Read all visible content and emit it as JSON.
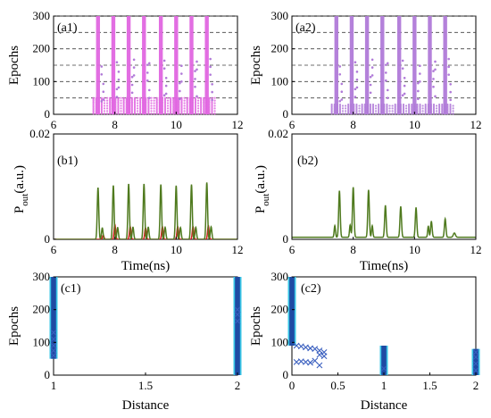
{
  "colors": {
    "magenta": "#e066e0",
    "violet": "#b07ad8",
    "olive": "#4f7a1e",
    "red": "#d42020",
    "navy": "#1f4aa3",
    "cyan": "#38c6e6",
    "cross": "#3a5fbf",
    "grid": "#404040"
  },
  "chart_data": [
    {
      "id": "a1",
      "type": "scatter",
      "label": "(a1)",
      "ylabel": "Epochs",
      "xlabel": "",
      "xlim": [
        6,
        12
      ],
      "ylim": [
        0,
        300
      ],
      "xticks": [
        "6",
        "8",
        "10",
        "12"
      ],
      "yticks": [
        "0",
        "100",
        "200",
        "300"
      ],
      "grid_lines_y": [
        50,
        100,
        150,
        200,
        250,
        300
      ],
      "grid": "dashed horizontal",
      "pulse_positions_ns": [
        7.45,
        7.95,
        8.45,
        8.95,
        9.5,
        10.0,
        10.5,
        11.0
      ],
      "fill_to_epochs": 300,
      "marker_color": "magenta",
      "band_dots_epochs_max": 50
    },
    {
      "id": "a2",
      "type": "scatter",
      "label": "(a2)",
      "ylabel": "Epochs",
      "xlabel": "",
      "xlim": [
        6,
        12
      ],
      "ylim": [
        0,
        300
      ],
      "xticks": [
        "6",
        "8",
        "10",
        "12"
      ],
      "yticks": [
        "0",
        "100",
        "200",
        "300"
      ],
      "grid_lines_y": [
        50,
        100,
        150,
        200,
        250,
        300
      ],
      "grid": "dashed horizontal",
      "pulse_positions_ns": [
        7.45,
        7.95,
        8.45,
        8.95,
        9.5,
        10.0,
        10.5,
        11.0
      ],
      "fill_to_epochs": 300,
      "marker_color": "violet",
      "band_dots_epochs_max": 30
    },
    {
      "id": "b1",
      "type": "line",
      "label": "(b1)",
      "ylabel": "P",
      "ylabel_sub": "out",
      "ylabel_unit": "(a.u.)",
      "xlabel": "Time(ns)",
      "xlim": [
        6,
        12
      ],
      "ylim": [
        0,
        0.02
      ],
      "xticks": [
        "6",
        "8",
        "10",
        "12"
      ],
      "yticks": [
        "0",
        "0.02"
      ],
      "series": [
        {
          "color": "olive",
          "pulses": [
            {
              "t": 7.45,
              "amp": 0.0098,
              "w": 0.035
            },
            {
              "t": 7.95,
              "amp": 0.0102,
              "w": 0.035
            },
            {
              "t": 8.45,
              "amp": 0.0105,
              "w": 0.035
            },
            {
              "t": 8.95,
              "amp": 0.0105,
              "w": 0.035
            },
            {
              "t": 9.5,
              "amp": 0.0104,
              "w": 0.035
            },
            {
              "t": 10.0,
              "amp": 0.0102,
              "w": 0.035
            },
            {
              "t": 10.5,
              "amp": 0.0104,
              "w": 0.035
            },
            {
              "t": 11.0,
              "amp": 0.0108,
              "w": 0.035
            }
          ],
          "echo": {
            "dt": 0.14,
            "ratio": 0.22
          }
        },
        {
          "color": "red",
          "pulses": [
            {
              "t": 7.62,
              "amp": 0.0008,
              "w": 0.035
            },
            {
              "t": 8.0,
              "amp": 0.0028,
              "w": 0.035
            },
            {
              "t": 8.5,
              "amp": 0.0024,
              "w": 0.035
            },
            {
              "t": 9.0,
              "amp": 0.0022,
              "w": 0.035
            },
            {
              "t": 9.55,
              "amp": 0.0024,
              "w": 0.035
            },
            {
              "t": 10.05,
              "amp": 0.0024,
              "w": 0.035
            },
            {
              "t": 10.55,
              "amp": 0.0024,
              "w": 0.035
            },
            {
              "t": 11.05,
              "amp": 0.0026,
              "w": 0.035
            }
          ]
        }
      ]
    },
    {
      "id": "b2",
      "type": "line",
      "label": "(b2)",
      "ylabel": "P",
      "ylabel_sub": "out",
      "ylabel_unit": "(a.u.)",
      "xlabel": "Time(ns)",
      "xlim": [
        6,
        12
      ],
      "ylim": [
        0,
        0.02
      ],
      "xticks": [
        "6",
        "8",
        "10",
        "12"
      ],
      "yticks": [
        "0",
        "0.02"
      ],
      "series": [
        {
          "color": "olive",
          "pulses": [
            {
              "t": 7.4,
              "amp": 0.0022,
              "w": 0.03
            },
            {
              "t": 7.55,
              "amp": 0.0088,
              "w": 0.035
            },
            {
              "t": 7.9,
              "amp": 0.0023,
              "w": 0.03
            },
            {
              "t": 8.0,
              "amp": 0.0095,
              "w": 0.035
            },
            {
              "t": 8.5,
              "amp": 0.009,
              "w": 0.035
            },
            {
              "t": 8.62,
              "amp": 0.0022,
              "w": 0.03
            },
            {
              "t": 9.05,
              "amp": 0.006,
              "w": 0.035
            },
            {
              "t": 9.55,
              "amp": 0.0058,
              "w": 0.035
            },
            {
              "t": 10.05,
              "amp": 0.0056,
              "w": 0.035
            },
            {
              "t": 10.45,
              "amp": 0.0021,
              "w": 0.03
            },
            {
              "t": 10.55,
              "amp": 0.003,
              "w": 0.035
            },
            {
              "t": 11.0,
              "amp": 0.0035,
              "w": 0.035
            },
            {
              "t": 11.3,
              "amp": 0.0008,
              "w": 0.05
            }
          ],
          "baseline": 0.0004
        }
      ]
    },
    {
      "id": "c1",
      "type": "scatter",
      "label": "(c1)",
      "ylabel": "Epochs",
      "xlabel": "Distance",
      "xlim": [
        1,
        2
      ],
      "ylim": [
        0,
        300
      ],
      "xticks": [
        "1",
        "1.5",
        "2"
      ],
      "yticks": [
        "0",
        "100",
        "200",
        "300"
      ],
      "columns": [
        {
          "x": 1.0,
          "epoch_range": [
            50,
            300
          ],
          "crosses": [
            [
              1.0,
              60
            ],
            [
              1.0,
              75
            ],
            [
              1.0,
              90
            ],
            [
              1.0,
              110
            ],
            [
              1.0,
              130
            ]
          ]
        },
        {
          "x": 2.0,
          "epoch_range": [
            0,
            300
          ],
          "crosses": [
            [
              2.0,
              165
            ],
            [
              2.0,
              185
            ],
            [
              2.0,
              200
            ]
          ]
        }
      ]
    },
    {
      "id": "c2",
      "type": "scatter",
      "label": "(c2)",
      "ylabel": "Epochs",
      "xlabel": "Distance",
      "xlim": [
        0,
        2
      ],
      "ylim": [
        0,
        300
      ],
      "xticks": [
        "0",
        "0.5",
        "1",
        "1.5",
        "2"
      ],
      "yticks": [
        "0",
        "100",
        "200",
        "300"
      ],
      "columns": [
        {
          "x": 0.0,
          "epoch_range": [
            90,
            300
          ],
          "crosses": []
        },
        {
          "x": 1.0,
          "epoch_range": [
            0,
            90
          ],
          "crosses": [
            [
              1.0,
              20
            ]
          ]
        },
        {
          "x": 2.0,
          "epoch_range": [
            0,
            80
          ],
          "crosses": [
            [
              2.0,
              15
            ],
            [
              2.0,
              35
            ],
            [
              2.0,
              55
            ],
            [
              2.0,
              70
            ]
          ]
        }
      ],
      "scatter_crosses": [
        [
          0.05,
          90
        ],
        [
          0.1,
          88
        ],
        [
          0.15,
          85
        ],
        [
          0.2,
          82
        ],
        [
          0.25,
          80
        ],
        [
          0.3,
          75
        ],
        [
          0.3,
          62
        ],
        [
          0.35,
          70
        ],
        [
          0.35,
          58
        ],
        [
          0.1,
          42
        ],
        [
          0.15,
          40
        ],
        [
          0.2,
          38
        ],
        [
          0.25,
          44
        ],
        [
          0.05,
          40
        ],
        [
          0.3,
          30
        ]
      ]
    }
  ]
}
